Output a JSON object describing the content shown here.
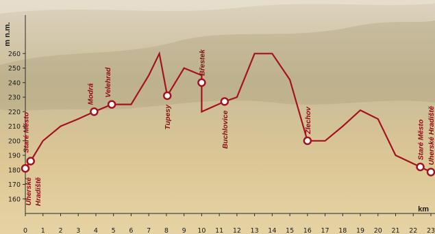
{
  "chart_data": {
    "type": "line",
    "ylabel": "m n.m.",
    "xlabel": "km",
    "xlim": [
      0,
      23
    ],
    "ylim": [
      150,
      270
    ],
    "x_ticks": [
      0,
      1,
      2,
      3,
      4,
      5,
      6,
      7,
      8,
      9,
      10,
      11,
      12,
      13,
      14,
      15,
      16,
      17,
      18,
      19,
      20,
      21,
      22,
      23
    ],
    "y_ticks": [
      160,
      170,
      180,
      190,
      200,
      210,
      220,
      230,
      240,
      250,
      260
    ],
    "grid": false,
    "colors": {
      "line": "#a3121f",
      "marker_fill": "#ffffff",
      "background_top": "#d9c6a0",
      "background_bottom": "#e3cf9a"
    },
    "series": [
      {
        "points": [
          [
            0,
            181
          ],
          [
            0.3,
            186
          ],
          [
            1,
            200
          ],
          [
            2,
            210
          ],
          [
            3,
            215
          ],
          [
            3.9,
            220
          ],
          [
            4.9,
            225
          ],
          [
            6,
            225
          ],
          [
            7,
            245
          ],
          [
            7.6,
            260
          ],
          [
            8.05,
            231
          ],
          [
            9,
            250
          ],
          [
            10,
            245
          ],
          [
            10,
            220
          ],
          [
            11.3,
            227
          ],
          [
            12,
            230
          ],
          [
            13,
            260
          ],
          [
            14,
            260
          ],
          [
            15,
            242
          ],
          [
            16,
            200
          ],
          [
            17,
            200
          ],
          [
            18,
            210
          ],
          [
            19,
            221
          ],
          [
            20,
            215
          ],
          [
            21,
            190
          ],
          [
            22.4,
            182
          ],
          [
            23,
            178.5
          ]
        ]
      }
    ],
    "places": [
      {
        "x": 0,
        "y": 181,
        "label": "Uherské Hradiště"
      },
      {
        "x": 0.3,
        "y": 186,
        "label": "Staré Město"
      },
      {
        "x": 3.9,
        "y": 220,
        "label": "Modrá"
      },
      {
        "x": 4.9,
        "y": 225,
        "label": "Velehrad"
      },
      {
        "x": 8.05,
        "y": 231,
        "label": "Tupesy"
      },
      {
        "x": 10,
        "y": 240,
        "label": "Břestek"
      },
      {
        "x": 11.3,
        "y": 227,
        "label": "Buchlovice"
      },
      {
        "x": 16,
        "y": 200,
        "label": "Zlechov"
      },
      {
        "x": 22.4,
        "y": 182,
        "label": "Staré Město"
      },
      {
        "x": 23,
        "y": 178.5,
        "label": "Uherské Hradiště"
      }
    ]
  }
}
